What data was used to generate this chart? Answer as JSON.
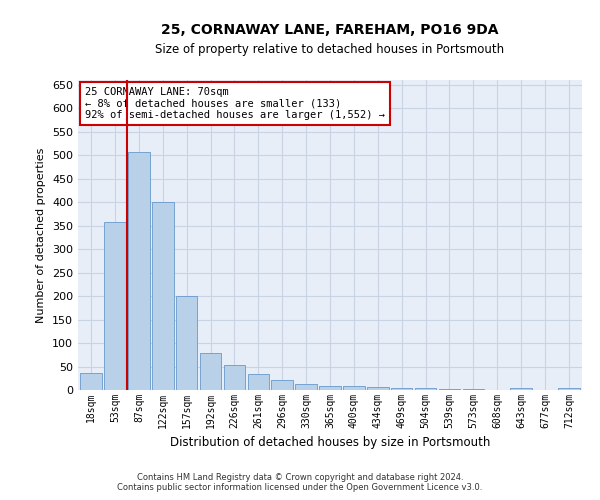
{
  "title": "25, CORNAWAY LANE, FAREHAM, PO16 9DA",
  "subtitle": "Size of property relative to detached houses in Portsmouth",
  "xlabel": "Distribution of detached houses by size in Portsmouth",
  "ylabel": "Number of detached properties",
  "bar_color": "#b8d0e8",
  "bar_edgecolor": "#6699cc",
  "grid_color": "#c8d4e4",
  "background_color": "#e8eef8",
  "annotation_box_color": "#cc0000",
  "annotation_text": "25 CORNAWAY LANE: 70sqm\n← 8% of detached houses are smaller (133)\n92% of semi-detached houses are larger (1,552) →",
  "vline_color": "#cc0000",
  "categories": [
    "18sqm",
    "53sqm",
    "87sqm",
    "122sqm",
    "157sqm",
    "192sqm",
    "226sqm",
    "261sqm",
    "296sqm",
    "330sqm",
    "365sqm",
    "400sqm",
    "434sqm",
    "469sqm",
    "504sqm",
    "539sqm",
    "573sqm",
    "608sqm",
    "643sqm",
    "677sqm",
    "712sqm"
  ],
  "values": [
    37,
    357,
    507,
    400,
    200,
    78,
    53,
    35,
    22,
    12,
    9,
    8,
    6,
    5,
    4,
    3,
    2,
    0,
    5,
    0,
    5
  ],
  "footer1": "Contains HM Land Registry data © Crown copyright and database right 2024.",
  "footer2": "Contains public sector information licensed under the Open Government Licence v3.0.",
  "ylim": [
    0,
    660
  ],
  "yticks": [
    0,
    50,
    100,
    150,
    200,
    250,
    300,
    350,
    400,
    450,
    500,
    550,
    600,
    650
  ],
  "vline_pos": 1.5
}
